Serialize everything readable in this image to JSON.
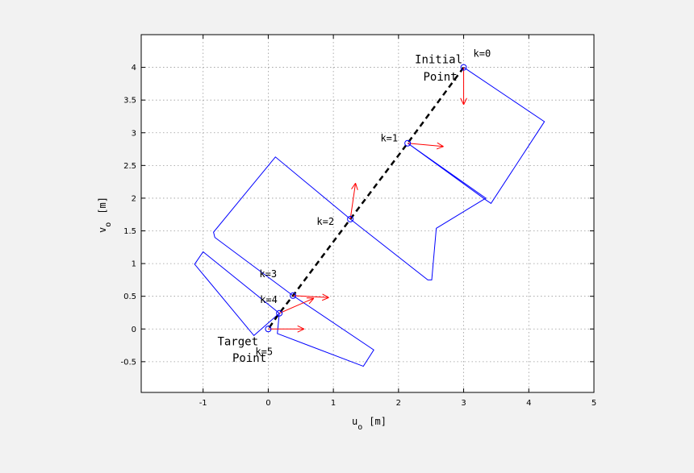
{
  "chart_data": {
    "type": "line",
    "xlabel": "u",
    "xlabel_subscript": "o",
    "xlabel_unit": "[m]",
    "ylabel": "v",
    "ylabel_subscript": "o",
    "ylabel_unit": "[m]",
    "xlim": [
      -1.95,
      5
    ],
    "ylim": [
      -0.97,
      4.5
    ],
    "grid": true,
    "x_ticks": [
      -1,
      0,
      1,
      2,
      3,
      4,
      5
    ],
    "x_tick_labels": [
      "-1",
      "0",
      "1",
      "2",
      "3",
      "4",
      "5"
    ],
    "y_ticks": [
      -0.5,
      0,
      0.5,
      1,
      1.5,
      2,
      2.5,
      3,
      3.5,
      4
    ],
    "y_tick_labels": [
      "-0.5",
      "0",
      "0.5",
      "1",
      "1.5",
      "2",
      "2.5",
      "3",
      "3.5",
      "4"
    ],
    "trajectory": {
      "style": "dashed",
      "color": "#000000",
      "points": [
        {
          "x": 3.0,
          "y": 4.0
        },
        {
          "x": 2.14,
          "y": 2.84
        },
        {
          "x": 1.26,
          "y": 1.68
        },
        {
          "x": 0.38,
          "y": 0.51
        },
        {
          "x": 0.17,
          "y": 0.24
        },
        {
          "x": 0.0,
          "y": 0.0
        }
      ]
    },
    "waypoints": [
      {
        "label": "k=0",
        "x": 3.0,
        "y": 4.0,
        "arrow": [
          0.0,
          -0.57
        ]
      },
      {
        "label": "k=1",
        "x": 2.14,
        "y": 2.84,
        "arrow": [
          0.55,
          -0.05
        ]
      },
      {
        "label": "k=2",
        "x": 1.26,
        "y": 1.68,
        "arrow": [
          0.08,
          0.55
        ]
      },
      {
        "label": "k=3",
        "x": 0.38,
        "y": 0.51,
        "arrow": [
          0.55,
          -0.03
        ]
      },
      {
        "label": "k=4",
        "x": 0.17,
        "y": 0.24,
        "arrow": [
          0.53,
          0.23
        ]
      },
      {
        "label": "k=5",
        "x": 0.0,
        "y": 0.0,
        "arrow": [
          0.55,
          0.0
        ]
      }
    ],
    "shapes": [
      {
        "name": "vehicle-outline-upper",
        "color": "#0000ff",
        "points": [
          [
            3.0,
            4.0
          ],
          [
            4.24,
            3.17
          ],
          [
            3.42,
            1.92
          ],
          [
            3.36,
            1.96
          ],
          [
            2.14,
            2.84
          ],
          [
            3.34,
            2.0
          ],
          [
            2.58,
            1.54
          ],
          [
            2.51,
            0.75
          ],
          [
            2.45,
            0.75
          ],
          [
            1.26,
            1.68
          ],
          [
            0.11,
            2.63
          ],
          [
            -0.84,
            1.48
          ],
          [
            -0.82,
            1.4
          ],
          [
            0.38,
            0.51
          ]
        ]
      },
      {
        "name": "vehicle-outline-lower",
        "color": "#0000ff",
        "points": [
          [
            0.38,
            0.51
          ],
          [
            1.62,
            -0.32
          ],
          [
            1.46,
            -0.57
          ],
          [
            0.14,
            -0.07
          ],
          [
            0.17,
            0.24
          ],
          [
            -0.22,
            -0.1
          ],
          [
            -1.13,
            0.99
          ],
          [
            -1.0,
            1.18
          ],
          [
            0.17,
            0.24
          ]
        ]
      }
    ],
    "annotations": [
      {
        "text": "Initial",
        "x": 2.25,
        "y": 4.06
      },
      {
        "text": "Point",
        "x": 2.38,
        "y": 3.8
      },
      {
        "text": "Target",
        "x": -0.78,
        "y": -0.25
      },
      {
        "text": "Point",
        "x": -0.55,
        "y": -0.5
      }
    ],
    "colors": {
      "shapes": "#0000ff",
      "arrows": "#ff0000",
      "markers": "#0000ff",
      "path": "#000000"
    }
  }
}
